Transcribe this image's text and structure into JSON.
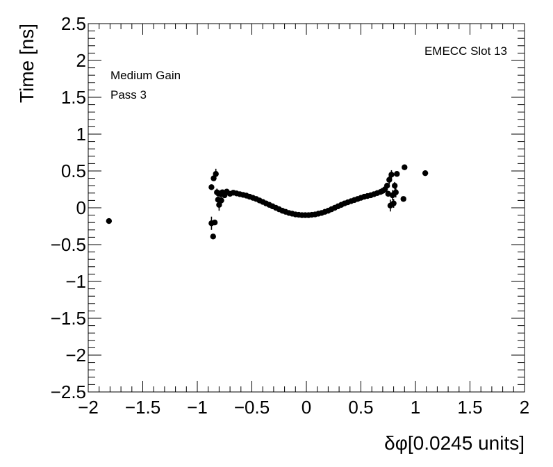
{
  "chart_data": {
    "type": "scatter",
    "title": "",
    "xlabel": "δφ[0.0245 units]",
    "ylabel": "Time [ns]",
    "xlim": [
      -2,
      2
    ],
    "ylim": [
      -2.5,
      2.5
    ],
    "x_ticks": [
      -2,
      -1.5,
      -1,
      -0.5,
      0,
      0.5,
      1,
      1.5,
      2
    ],
    "x_tick_labels": [
      "−2",
      "−1.5",
      "−1",
      "−0.5",
      "0",
      "0.5",
      "1",
      "1.5",
      "2"
    ],
    "y_ticks": [
      2.5,
      2,
      1.5,
      1,
      0.5,
      0,
      -0.5,
      -1,
      -1.5,
      -2,
      -2.5
    ],
    "y_tick_labels": [
      "2.5",
      "2",
      "1.5",
      "1",
      "0.5",
      "0",
      "−0.5",
      "−1",
      "−1.5",
      "−2",
      "−2.5"
    ],
    "grid": false,
    "legend": "none",
    "annotations": [
      "EMECC Slot 13",
      "Medium Gain",
      "Pass 3"
    ],
    "marker_color": "#000000",
    "series": [
      {
        "points": [
          {
            "x": -1.81,
            "y": -0.18,
            "err": 0.0
          },
          {
            "x": -0.87,
            "y": 0.28,
            "err": 0.0
          },
          {
            "x": -0.87,
            "y": -0.21,
            "err": 0.09
          },
          {
            "x": -0.855,
            "y": -0.39,
            "err": 0.0
          },
          {
            "x": -0.85,
            "y": 0.4,
            "err": 0.0
          },
          {
            "x": -0.84,
            "y": -0.2,
            "err": 0.0
          },
          {
            "x": -0.83,
            "y": 0.46,
            "err": 0.07
          },
          {
            "x": -0.82,
            "y": 0.21,
            "err": 0.05
          },
          {
            "x": -0.81,
            "y": 0.11,
            "err": 0.08
          },
          {
            "x": -0.8,
            "y": 0.04,
            "err": 0.08
          },
          {
            "x": -0.79,
            "y": 0.19,
            "err": 0.05
          },
          {
            "x": -0.78,
            "y": 0.1,
            "err": 0.06
          },
          {
            "x": -0.77,
            "y": 0.21,
            "err": 0.03
          },
          {
            "x": -0.75,
            "y": 0.17,
            "err": 0.02
          },
          {
            "x": -0.73,
            "y": 0.22,
            "err": 0.02
          },
          {
            "x": -0.7,
            "y": 0.19,
            "err": 0.0
          },
          {
            "x": -0.67,
            "y": 0.205,
            "err": 0.0
          },
          {
            "x": -0.64,
            "y": 0.195,
            "err": 0.0
          },
          {
            "x": -0.61,
            "y": 0.185,
            "err": 0.0
          },
          {
            "x": -0.58,
            "y": 0.175,
            "err": 0.0
          },
          {
            "x": -0.55,
            "y": 0.165,
            "err": 0.0
          },
          {
            "x": -0.52,
            "y": 0.15,
            "err": 0.0
          },
          {
            "x": -0.49,
            "y": 0.135,
            "err": 0.0
          },
          {
            "x": -0.46,
            "y": 0.12,
            "err": 0.0
          },
          {
            "x": -0.43,
            "y": 0.1,
            "err": 0.0
          },
          {
            "x": -0.4,
            "y": 0.08,
            "err": 0.0
          },
          {
            "x": -0.37,
            "y": 0.06,
            "err": 0.0
          },
          {
            "x": -0.34,
            "y": 0.04,
            "err": 0.0
          },
          {
            "x": -0.31,
            "y": 0.02,
            "err": 0.0
          },
          {
            "x": -0.28,
            "y": 0.0,
            "err": 0.0
          },
          {
            "x": -0.25,
            "y": -0.02,
            "err": 0.0
          },
          {
            "x": -0.22,
            "y": -0.04,
            "err": 0.0
          },
          {
            "x": -0.19,
            "y": -0.055,
            "err": 0.0
          },
          {
            "x": -0.16,
            "y": -0.07,
            "err": 0.0
          },
          {
            "x": -0.13,
            "y": -0.08,
            "err": 0.0
          },
          {
            "x": -0.1,
            "y": -0.09,
            "err": 0.0
          },
          {
            "x": -0.07,
            "y": -0.095,
            "err": 0.0
          },
          {
            "x": -0.04,
            "y": -0.1,
            "err": 0.0
          },
          {
            "x": -0.01,
            "y": -0.1,
            "err": 0.0
          },
          {
            "x": 0.02,
            "y": -0.1,
            "err": 0.0
          },
          {
            "x": 0.05,
            "y": -0.095,
            "err": 0.0
          },
          {
            "x": 0.08,
            "y": -0.09,
            "err": 0.0
          },
          {
            "x": 0.11,
            "y": -0.08,
            "err": 0.0
          },
          {
            "x": 0.14,
            "y": -0.07,
            "err": 0.0
          },
          {
            "x": 0.17,
            "y": -0.055,
            "err": 0.0
          },
          {
            "x": 0.2,
            "y": -0.04,
            "err": 0.0
          },
          {
            "x": 0.23,
            "y": -0.02,
            "err": 0.0
          },
          {
            "x": 0.26,
            "y": 0.0,
            "err": 0.0
          },
          {
            "x": 0.29,
            "y": 0.02,
            "err": 0.0
          },
          {
            "x": 0.32,
            "y": 0.04,
            "err": 0.0
          },
          {
            "x": 0.35,
            "y": 0.06,
            "err": 0.0
          },
          {
            "x": 0.38,
            "y": 0.075,
            "err": 0.0
          },
          {
            "x": 0.41,
            "y": 0.09,
            "err": 0.0
          },
          {
            "x": 0.44,
            "y": 0.105,
            "err": 0.0
          },
          {
            "x": 0.47,
            "y": 0.12,
            "err": 0.0
          },
          {
            "x": 0.5,
            "y": 0.135,
            "err": 0.0
          },
          {
            "x": 0.53,
            "y": 0.15,
            "err": 0.0
          },
          {
            "x": 0.56,
            "y": 0.16,
            "err": 0.0
          },
          {
            "x": 0.59,
            "y": 0.17,
            "err": 0.0
          },
          {
            "x": 0.62,
            "y": 0.185,
            "err": 0.0
          },
          {
            "x": 0.65,
            "y": 0.2,
            "err": 0.01
          },
          {
            "x": 0.68,
            "y": 0.215,
            "err": 0.02
          },
          {
            "x": 0.7,
            "y": 0.23,
            "err": 0.02
          },
          {
            "x": 0.72,
            "y": 0.25,
            "err": 0.03
          },
          {
            "x": 0.74,
            "y": 0.3,
            "err": 0.04
          },
          {
            "x": 0.75,
            "y": 0.19,
            "err": 0.04
          },
          {
            "x": 0.76,
            "y": 0.38,
            "err": 0.06
          },
          {
            "x": 0.77,
            "y": 0.03,
            "err": 0.08
          },
          {
            "x": 0.78,
            "y": 0.45,
            "err": 0.06
          },
          {
            "x": 0.79,
            "y": 0.17,
            "err": 0.07
          },
          {
            "x": 0.8,
            "y": 0.06,
            "err": 0.06
          },
          {
            "x": 0.81,
            "y": 0.3,
            "err": 0.05
          },
          {
            "x": 0.82,
            "y": 0.21,
            "err": 0.07
          },
          {
            "x": 0.83,
            "y": 0.46,
            "err": 0.0
          },
          {
            "x": 0.89,
            "y": 0.12,
            "err": 0.0
          },
          {
            "x": 0.9,
            "y": 0.55,
            "err": 0.0
          },
          {
            "x": 1.09,
            "y": 0.47,
            "err": 0.0
          }
        ]
      }
    ]
  }
}
